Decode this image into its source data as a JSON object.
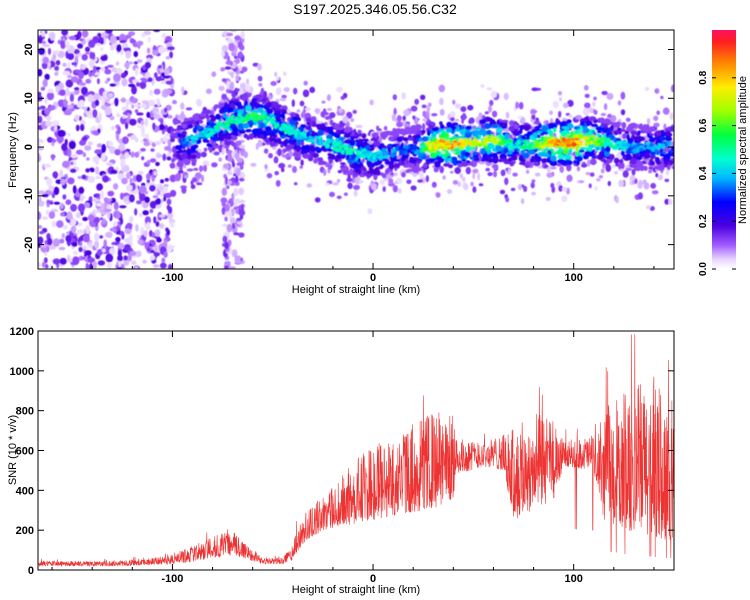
{
  "figure": {
    "title": "S197.2025.346.05.56.C32"
  },
  "chart_data": [
    {
      "type": "heatmap",
      "name": "spectrogram",
      "xlabel": "Height of straight line (km)",
      "ylabel": "Frequency (Hz)",
      "xlim": [
        -167,
        150
      ],
      "ylim": [
        -25,
        24
      ],
      "xticks": [
        -100,
        0,
        100
      ],
      "xtick_labels": [
        "-100",
        "0",
        "100"
      ],
      "yticks": [
        -20,
        -10,
        0,
        10,
        20
      ],
      "ytick_labels": [
        "-20",
        "-10",
        "0",
        "10",
        "20"
      ],
      "colorbar": {
        "label": "Normalized spectral amplitude",
        "range": [
          0,
          1
        ],
        "ticks": [
          0.0,
          0.2,
          0.4,
          0.6,
          0.8
        ],
        "tick_labels": [
          "0.0",
          "0.2",
          "0.4",
          "0.6",
          "0.8"
        ],
        "colormap": "rainbow"
      },
      "ridge_center_hz": [
        [
          -100,
          0.5
        ],
        [
          -90,
          1.5
        ],
        [
          -80,
          3.5
        ],
        [
          -70,
          5.5
        ],
        [
          -60,
          6.5
        ],
        [
          -50,
          5
        ],
        [
          -40,
          3
        ],
        [
          -30,
          1.5
        ],
        [
          -20,
          0.5
        ],
        [
          -10,
          -1
        ],
        [
          0,
          -2
        ],
        [
          10,
          -1
        ],
        [
          20,
          -0.5
        ],
        [
          30,
          0.5
        ],
        [
          40,
          0.5
        ],
        [
          50,
          1
        ],
        [
          60,
          1.5
        ],
        [
          70,
          0.5
        ],
        [
          80,
          0.5
        ],
        [
          90,
          1
        ],
        [
          100,
          1
        ],
        [
          110,
          1.5
        ],
        [
          120,
          0.5
        ],
        [
          130,
          0
        ],
        [
          150,
          0
        ]
      ],
      "ridge_amplitude": [
        [
          -100,
          0.3
        ],
        [
          -90,
          0.45
        ],
        [
          -80,
          0.5
        ],
        [
          -60,
          0.6
        ],
        [
          -50,
          0.55
        ],
        [
          -40,
          0.5
        ],
        [
          -30,
          0.45
        ],
        [
          -20,
          0.5
        ],
        [
          -10,
          0.55
        ],
        [
          0,
          0.45
        ],
        [
          20,
          0.35
        ],
        [
          30,
          0.85
        ],
        [
          40,
          0.9
        ],
        [
          50,
          0.75
        ],
        [
          60,
          0.8
        ],
        [
          70,
          0.5
        ],
        [
          80,
          0.6
        ],
        [
          90,
          0.92
        ],
        [
          100,
          0.95
        ],
        [
          110,
          0.7
        ],
        [
          120,
          0.5
        ],
        [
          130,
          0.4
        ],
        [
          150,
          0.45
        ]
      ]
    },
    {
      "type": "line",
      "name": "snr",
      "xlabel": "Height of straight line (km)",
      "ylabel": "SNR (10 * v/v)",
      "xlim": [
        -167,
        150
      ],
      "ylim": [
        0,
        1200
      ],
      "xticks": [
        -100,
        0,
        100
      ],
      "xtick_labels": [
        "-100",
        "0",
        "100"
      ],
      "yticks": [
        0,
        200,
        400,
        600,
        800,
        1000,
        1200
      ],
      "ytick_labels": [
        "0",
        "200",
        "400",
        "600",
        "800",
        "1000",
        "1200"
      ],
      "color": "#ee3333",
      "envelope": [
        [
          -167,
          20,
          45
        ],
        [
          -130,
          20,
          45
        ],
        [
          -110,
          25,
          60
        ],
        [
          -100,
          30,
          80
        ],
        [
          -90,
          40,
          120
        ],
        [
          -80,
          60,
          170
        ],
        [
          -70,
          70,
          200
        ],
        [
          -65,
          60,
          160
        ],
        [
          -55,
          30,
          60
        ],
        [
          -45,
          30,
          60
        ],
        [
          -40,
          50,
          140
        ],
        [
          -35,
          130,
          280
        ],
        [
          -25,
          200,
          370
        ],
        [
          -15,
          220,
          460
        ],
        [
          -5,
          240,
          600
        ],
        [
          5,
          260,
          650
        ],
        [
          15,
          280,
          700
        ],
        [
          25,
          300,
          780
        ],
        [
          35,
          320,
          800
        ],
        [
          40,
          360,
          780
        ],
        [
          42,
          480,
          660
        ],
        [
          55,
          520,
          650
        ],
        [
          65,
          500,
          680
        ],
        [
          70,
          250,
          720
        ],
        [
          80,
          300,
          800
        ],
        [
          90,
          350,
          750
        ],
        [
          95,
          520,
          650
        ],
        [
          110,
          500,
          680
        ],
        [
          115,
          250,
          780
        ],
        [
          125,
          200,
          900
        ],
        [
          135,
          180,
          950
        ],
        [
          145,
          150,
          900
        ],
        [
          150,
          150,
          850
        ]
      ]
    }
  ]
}
